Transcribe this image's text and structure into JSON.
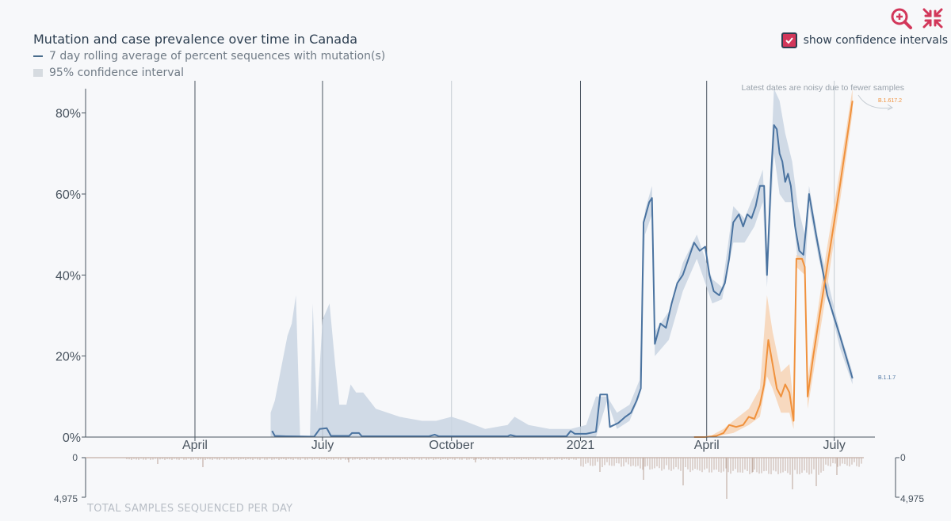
{
  "header": {
    "title": "Mutation and case prevalence over time in Canada",
    "legend_line": "7 day rolling average of percent sequences with mutation(s)",
    "legend_ci": "95% confidence interval"
  },
  "controls": {
    "ci_label": "show confidence intervals",
    "ci_checked": true,
    "zoom_icon": "zoom-in-icon",
    "collapse_icon": "collapse-icon"
  },
  "colors": {
    "series1": "#4a73a0",
    "series1_ci": "#c9d5e2",
    "series2": "#f0913c",
    "series2_ci": "#f7d3b4",
    "accent": "#d2375a",
    "samples": "#c4b0a6"
  },
  "notes": {
    "latest_noisy": "Latest dates are noisy due to fewer samples",
    "label_s2": "B.1.617.2",
    "label_s1": "B.1.1.7"
  },
  "histogram": {
    "label": "TOTAL SAMPLES SEQUENCED PER DAY",
    "top_value": "0",
    "bottom_value": "4,975"
  },
  "chart_data": {
    "type": "line",
    "title": "Mutation and case prevalence over time in Canada",
    "ylabel": "",
    "ylim": [
      0,
      86
    ],
    "yticks": [
      0,
      20,
      40,
      60,
      80
    ],
    "ytick_labels": [
      "0%",
      "20%",
      "40%",
      "60%",
      "80%"
    ],
    "xlim": [
      "2020-01-14",
      "2021-07-30"
    ],
    "xticks": [
      {
        "date": "2020-04-01",
        "label": "April"
      },
      {
        "date": "2020-07-01",
        "label": "July"
      },
      {
        "date": "2020-10-01",
        "label": "October"
      },
      {
        "date": "2021-01-01",
        "label": "2021"
      },
      {
        "date": "2021-04-01",
        "label": "April"
      },
      {
        "date": "2021-07-01",
        "label": "July"
      }
    ],
    "series": [
      {
        "name": "B.1.1.7",
        "points": [
          [
            "2020-05-26",
            1.5
          ],
          [
            "2020-05-28",
            0.3
          ],
          [
            "2020-06-05",
            0.2
          ],
          [
            "2020-06-25",
            0.1
          ],
          [
            "2020-06-29",
            2.0
          ],
          [
            "2020-07-04",
            2.2
          ],
          [
            "2020-07-07",
            0.3
          ],
          [
            "2020-07-20",
            0.3
          ],
          [
            "2020-07-22",
            1.0
          ],
          [
            "2020-07-27",
            1.0
          ],
          [
            "2020-07-29",
            0.2
          ],
          [
            "2020-09-15",
            0.2
          ],
          [
            "2020-09-19",
            0.6
          ],
          [
            "2020-09-22",
            0.2
          ],
          [
            "2020-11-10",
            0.2
          ],
          [
            "2020-11-12",
            0.5
          ],
          [
            "2020-11-16",
            0.2
          ],
          [
            "2020-12-22",
            0.2
          ],
          [
            "2020-12-25",
            1.5
          ],
          [
            "2020-12-28",
            0.8
          ],
          [
            "2021-01-05",
            0.8
          ],
          [
            "2021-01-12",
            1.3
          ],
          [
            "2021-01-15",
            10.5
          ],
          [
            "2021-01-20",
            10.5
          ],
          [
            "2021-01-22",
            2.5
          ],
          [
            "2021-01-28",
            3.5
          ],
          [
            "2021-02-02",
            5.0
          ],
          [
            "2021-02-06",
            6.0
          ],
          [
            "2021-02-10",
            9.0
          ],
          [
            "2021-02-13",
            12.0
          ],
          [
            "2021-02-15",
            53.0
          ],
          [
            "2021-02-19",
            58.0
          ],
          [
            "2021-02-21",
            59.0
          ],
          [
            "2021-02-23",
            23.0
          ],
          [
            "2021-02-27",
            28.0
          ],
          [
            "2021-03-03",
            27.0
          ],
          [
            "2021-03-07",
            33.0
          ],
          [
            "2021-03-11",
            38.0
          ],
          [
            "2021-03-15",
            40.0
          ],
          [
            "2021-03-19",
            44.0
          ],
          [
            "2021-03-23",
            48.0
          ],
          [
            "2021-03-27",
            46.0
          ],
          [
            "2021-03-31",
            47.0
          ],
          [
            "2021-04-03",
            40.0
          ],
          [
            "2021-04-06",
            36.0
          ],
          [
            "2021-04-10",
            35.0
          ],
          [
            "2021-04-14",
            38.0
          ],
          [
            "2021-04-17",
            44.0
          ],
          [
            "2021-04-20",
            53.0
          ],
          [
            "2021-04-24",
            55.0
          ],
          [
            "2021-04-27",
            52.0
          ],
          [
            "2021-04-30",
            55.0
          ],
          [
            "2021-05-03",
            54.0
          ],
          [
            "2021-05-06",
            57.0
          ],
          [
            "2021-05-09",
            62.0
          ],
          [
            "2021-05-12",
            62.0
          ],
          [
            "2021-05-14",
            40.0
          ],
          [
            "2021-05-17",
            65.0
          ],
          [
            "2021-05-19",
            77.0
          ],
          [
            "2021-05-21",
            76.0
          ],
          [
            "2021-05-23",
            70.0
          ],
          [
            "2021-05-25",
            68.0
          ],
          [
            "2021-05-27",
            63.0
          ],
          [
            "2021-05-29",
            65.0
          ],
          [
            "2021-05-31",
            62.0
          ],
          [
            "2021-06-03",
            52.0
          ],
          [
            "2021-06-06",
            46.0
          ],
          [
            "2021-06-09",
            45.0
          ],
          [
            "2021-06-11",
            52.0
          ],
          [
            "2021-06-13",
            60.0
          ],
          [
            "2021-06-18",
            50.0
          ],
          [
            "2021-06-26",
            35.0
          ],
          [
            "2021-07-05",
            25.0
          ],
          [
            "2021-07-14",
            14.5
          ]
        ]
      },
      {
        "name": "B.1.617.2",
        "points": [
          [
            "2021-03-23",
            0.0
          ],
          [
            "2021-03-31",
            0.0
          ],
          [
            "2021-04-08",
            0.3
          ],
          [
            "2021-04-13",
            1.0
          ],
          [
            "2021-04-17",
            3.0
          ],
          [
            "2021-04-22",
            2.5
          ],
          [
            "2021-04-27",
            3.0
          ],
          [
            "2021-05-01",
            5.0
          ],
          [
            "2021-05-05",
            4.5
          ],
          [
            "2021-05-09",
            8.0
          ],
          [
            "2021-05-12",
            13.0
          ],
          [
            "2021-05-15",
            24.0
          ],
          [
            "2021-05-18",
            18.0
          ],
          [
            "2021-05-21",
            12.0
          ],
          [
            "2021-05-24",
            10.0
          ],
          [
            "2021-05-27",
            13.0
          ],
          [
            "2021-05-30",
            11.0
          ],
          [
            "2021-06-02",
            4.0
          ],
          [
            "2021-06-04",
            44.0
          ],
          [
            "2021-06-08",
            44.0
          ],
          [
            "2021-06-10",
            42.0
          ],
          [
            "2021-06-12",
            10.0
          ],
          [
            "2021-06-16",
            20.0
          ],
          [
            "2021-06-25",
            40.0
          ],
          [
            "2021-07-05",
            62.0
          ],
          [
            "2021-07-14",
            83.0
          ]
        ]
      }
    ],
    "ci_upper_s1": [
      [
        "2020-05-25",
        6
      ],
      [
        "2020-05-28",
        9
      ],
      [
        "2020-06-02",
        18
      ],
      [
        "2020-06-06",
        25
      ],
      [
        "2020-06-09",
        28
      ],
      [
        "2020-06-12",
        35
      ],
      [
        "2020-06-15",
        0
      ],
      [
        "2020-06-22",
        0
      ],
      [
        "2020-06-24",
        33
      ],
      [
        "2020-06-27",
        6
      ],
      [
        "2020-07-01",
        29
      ],
      [
        "2020-07-06",
        33
      ],
      [
        "2020-07-10",
        18
      ],
      [
        "2020-07-13",
        8
      ],
      [
        "2020-07-18",
        8
      ],
      [
        "2020-07-21",
        13
      ],
      [
        "2020-07-25",
        11
      ],
      [
        "2020-07-30",
        11
      ],
      [
        "2020-08-08",
        7
      ],
      [
        "2020-08-25",
        5
      ],
      [
        "2020-09-10",
        4
      ],
      [
        "2020-09-20",
        4
      ],
      [
        "2020-10-01",
        5
      ],
      [
        "2020-10-10",
        4
      ],
      [
        "2020-10-25",
        2
      ],
      [
        "2020-11-10",
        3
      ],
      [
        "2020-11-15",
        5
      ],
      [
        "2020-11-25",
        3
      ],
      [
        "2020-12-10",
        2
      ],
      [
        "2020-12-25",
        2
      ],
      [
        "2021-01-05",
        3
      ],
      [
        "2021-01-12",
        10
      ],
      [
        "2021-01-20",
        10
      ],
      [
        "2021-01-27",
        6
      ],
      [
        "2021-02-05",
        8
      ],
      [
        "2021-02-12",
        14
      ],
      [
        "2021-02-16",
        56
      ],
      [
        "2021-02-21",
        62
      ],
      [
        "2021-02-23",
        26
      ],
      [
        "2021-03-05",
        31
      ],
      [
        "2021-03-15",
        43
      ],
      [
        "2021-03-25",
        50
      ],
      [
        "2021-04-05",
        39
      ],
      [
        "2021-04-12",
        37
      ],
      [
        "2021-04-20",
        57
      ],
      [
        "2021-04-28",
        54
      ],
      [
        "2021-05-05",
        60
      ],
      [
        "2021-05-11",
        66
      ],
      [
        "2021-05-14",
        45
      ],
      [
        "2021-05-19",
        86
      ],
      [
        "2021-05-23",
        83
      ],
      [
        "2021-05-27",
        75
      ],
      [
        "2021-06-01",
        68
      ],
      [
        "2021-06-05",
        57
      ],
      [
        "2021-06-10",
        50
      ],
      [
        "2021-06-13",
        62
      ],
      [
        "2021-06-20",
        48
      ],
      [
        "2021-07-05",
        26
      ],
      [
        "2021-07-14",
        16
      ]
    ],
    "ci_lower_s1": [
      [
        "2021-07-14",
        13
      ],
      [
        "2021-07-05",
        22
      ],
      [
        "2021-06-20",
        44
      ],
      [
        "2021-06-13",
        57
      ],
      [
        "2021-06-10",
        40
      ],
      [
        "2021-06-05",
        43
      ],
      [
        "2021-06-01",
        58
      ],
      [
        "2021-05-27",
        58
      ],
      [
        "2021-05-23",
        60
      ],
      [
        "2021-05-19",
        70
      ],
      [
        "2021-05-14",
        37
      ],
      [
        "2021-05-11",
        58
      ],
      [
        "2021-05-05",
        52
      ],
      [
        "2021-04-28",
        48
      ],
      [
        "2021-04-20",
        48
      ],
      [
        "2021-04-12",
        34
      ],
      [
        "2021-04-05",
        33
      ],
      [
        "2021-03-25",
        44
      ],
      [
        "2021-03-15",
        36
      ],
      [
        "2021-03-05",
        24
      ],
      [
        "2021-02-23",
        20
      ],
      [
        "2021-02-21",
        55
      ],
      [
        "2021-02-16",
        50
      ],
      [
        "2021-02-12",
        10
      ],
      [
        "2021-02-05",
        4
      ],
      [
        "2021-01-27",
        2
      ],
      [
        "2021-01-20",
        9
      ],
      [
        "2021-01-12",
        0
      ],
      [
        "2020-05-25",
        0
      ]
    ],
    "ci_upper_s2": [
      [
        "2021-04-05",
        0.5
      ],
      [
        "2021-04-13",
        2
      ],
      [
        "2021-04-20",
        4
      ],
      [
        "2021-05-01",
        7
      ],
      [
        "2021-05-09",
        12
      ],
      [
        "2021-05-14",
        35
      ],
      [
        "2021-05-18",
        26
      ],
      [
        "2021-05-24",
        16
      ],
      [
        "2021-05-30",
        18
      ],
      [
        "2021-06-02",
        8
      ],
      [
        "2021-06-04",
        45
      ],
      [
        "2021-06-10",
        44
      ],
      [
        "2021-06-12",
        14
      ],
      [
        "2021-06-25",
        45
      ],
      [
        "2021-07-05",
        66
      ],
      [
        "2021-07-14",
        86
      ]
    ],
    "ci_lower_s2": [
      [
        "2021-07-14",
        80
      ],
      [
        "2021-07-05",
        58
      ],
      [
        "2021-06-25",
        35
      ],
      [
        "2021-06-12",
        7
      ],
      [
        "2021-06-10",
        40
      ],
      [
        "2021-06-04",
        42
      ],
      [
        "2021-06-02",
        2
      ],
      [
        "2021-05-30",
        6
      ],
      [
        "2021-05-24",
        6
      ],
      [
        "2021-05-18",
        12
      ],
      [
        "2021-05-14",
        15
      ],
      [
        "2021-05-09",
        5
      ],
      [
        "2021-05-01",
        3
      ],
      [
        "2021-04-20",
        1
      ],
      [
        "2021-04-05",
        0
      ]
    ],
    "grid": true,
    "legend": "top-left"
  }
}
